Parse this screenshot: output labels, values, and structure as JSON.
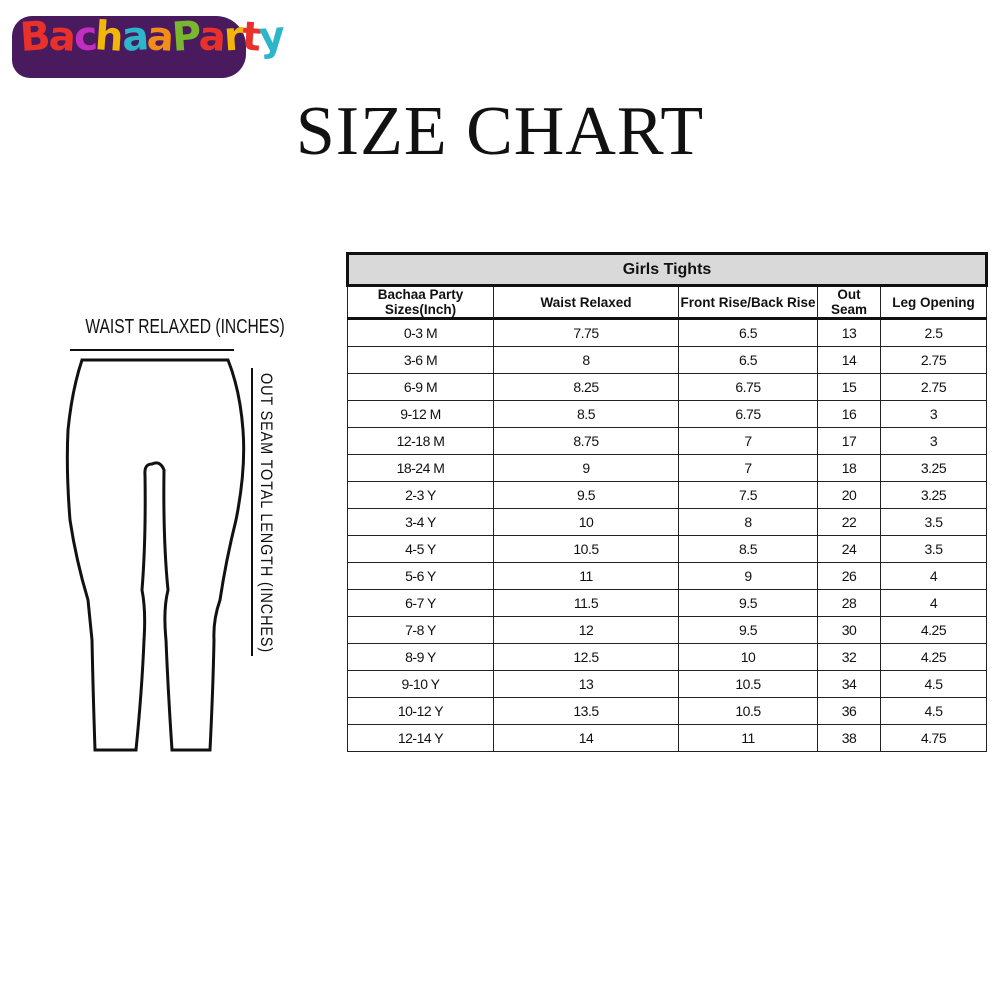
{
  "logo": {
    "text": "BachaaParty",
    "colors": [
      "#e8312a",
      "#e8312a",
      "#c22fc0",
      "#f2b705",
      "#2cb6c9",
      "#f28c1b",
      "#78b72e",
      "#e8312a",
      "#f2b705",
      "#e8312a",
      "#2cb6c9"
    ]
  },
  "title": "SIZE CHART",
  "diagram": {
    "waist_label": "WAIST RELAXED (INCHES)",
    "outseam_label": "OUT SEAM TOTAL LENGTH (INCHES)"
  },
  "table": {
    "caption": "Girls Tights",
    "columns": [
      "Bachaa Party Sizes(Inch)",
      "Waist Relaxed",
      "Front Rise/Back Rise",
      "Out Seam",
      "Leg Opening"
    ],
    "rows": [
      [
        "0-3 M",
        "7.75",
        "6.5",
        "13",
        "2.5"
      ],
      [
        "3-6 M",
        "8",
        "6.5",
        "14",
        "2.75"
      ],
      [
        "6-9 M",
        "8.25",
        "6.75",
        "15",
        "2.75"
      ],
      [
        "9-12 M",
        "8.5",
        "6.75",
        "16",
        "3"
      ],
      [
        "12-18 M",
        "8.75",
        "7",
        "17",
        "3"
      ],
      [
        "18-24 M",
        "9",
        "7",
        "18",
        "3.25"
      ],
      [
        "2-3 Y",
        "9.5",
        "7.5",
        "20",
        "3.25"
      ],
      [
        "3-4 Y",
        "10",
        "8",
        "22",
        "3.5"
      ],
      [
        "4-5 Y",
        "10.5",
        "8.5",
        "24",
        "3.5"
      ],
      [
        "5-6 Y",
        "11",
        "9",
        "26",
        "4"
      ],
      [
        "6-7 Y",
        "11.5",
        "9.5",
        "28",
        "4"
      ],
      [
        "7-8 Y",
        "12",
        "9.5",
        "30",
        "4.25"
      ],
      [
        "8-9 Y",
        "12.5",
        "10",
        "32",
        "4.25"
      ],
      [
        "9-10 Y",
        "13",
        "10.5",
        "34",
        "4.5"
      ],
      [
        "10-12 Y",
        "13.5",
        "10.5",
        "36",
        "4.5"
      ],
      [
        "12-14 Y",
        "14",
        "11",
        "38",
        "4.75"
      ]
    ]
  }
}
